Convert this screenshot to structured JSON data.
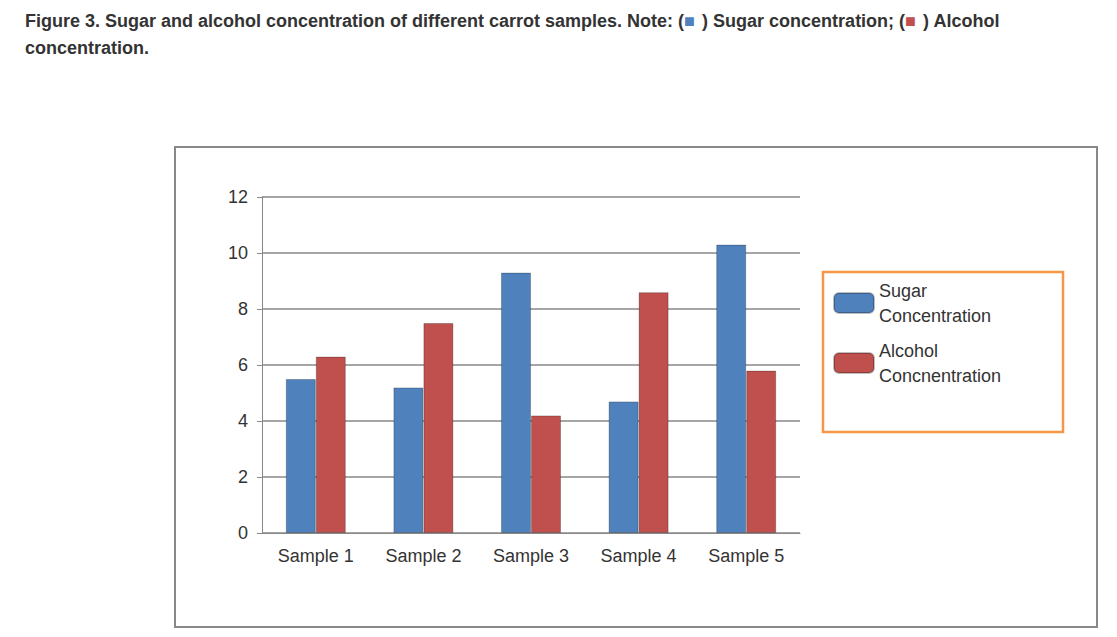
{
  "chart_data": {
    "type": "bar",
    "title": "Figure 3. Sugar and alcohol concentration of different carrot samples. Note: (■) Sugar concentration; (■) Alcohol concentration.",
    "categories": [
      "Sample 1",
      "Sample 2",
      "Sample 3",
      "Sample 4",
      "Sample 5"
    ],
    "series": [
      {
        "name": "Sugar Concentration",
        "color": "#4f81bd",
        "values": [
          5.5,
          5.2,
          9.3,
          4.7,
          10.3
        ]
      },
      {
        "name": "Alcohol Concnentration",
        "color": "#c0504d",
        "values": [
          6.3,
          7.5,
          4.2,
          8.6,
          5.8
        ]
      }
    ],
    "ylim": [
      0,
      12
    ],
    "yticks": [
      0,
      2,
      4,
      6,
      8,
      10,
      12
    ],
    "grid": true,
    "legend": "right"
  }
}
